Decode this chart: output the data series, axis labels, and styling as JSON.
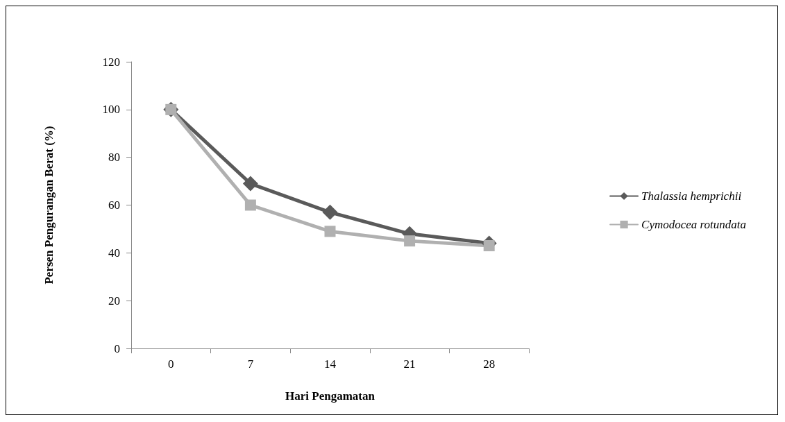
{
  "chart_data": {
    "type": "line",
    "xlabel": "Hari Pengamatan",
    "ylabel": "Persen Pengurangan Berat (%)",
    "categories": [
      "0",
      "7",
      "14",
      "21",
      "28"
    ],
    "series": [
      {
        "name": "Thalassia hemprichii",
        "color": "#5a5a5a",
        "marker": "diamond",
        "values": [
          100,
          69,
          57,
          48,
          44
        ]
      },
      {
        "name": "Cymodocea rotundata",
        "color": "#b0b0b0",
        "marker": "square",
        "values": [
          100,
          60,
          49,
          45,
          43
        ]
      }
    ],
    "ylim": [
      0,
      120
    ],
    "yticks": [
      0,
      20,
      40,
      60,
      80,
      100,
      120
    ],
    "grid": false,
    "legend": "right",
    "line_style": "solid"
  }
}
